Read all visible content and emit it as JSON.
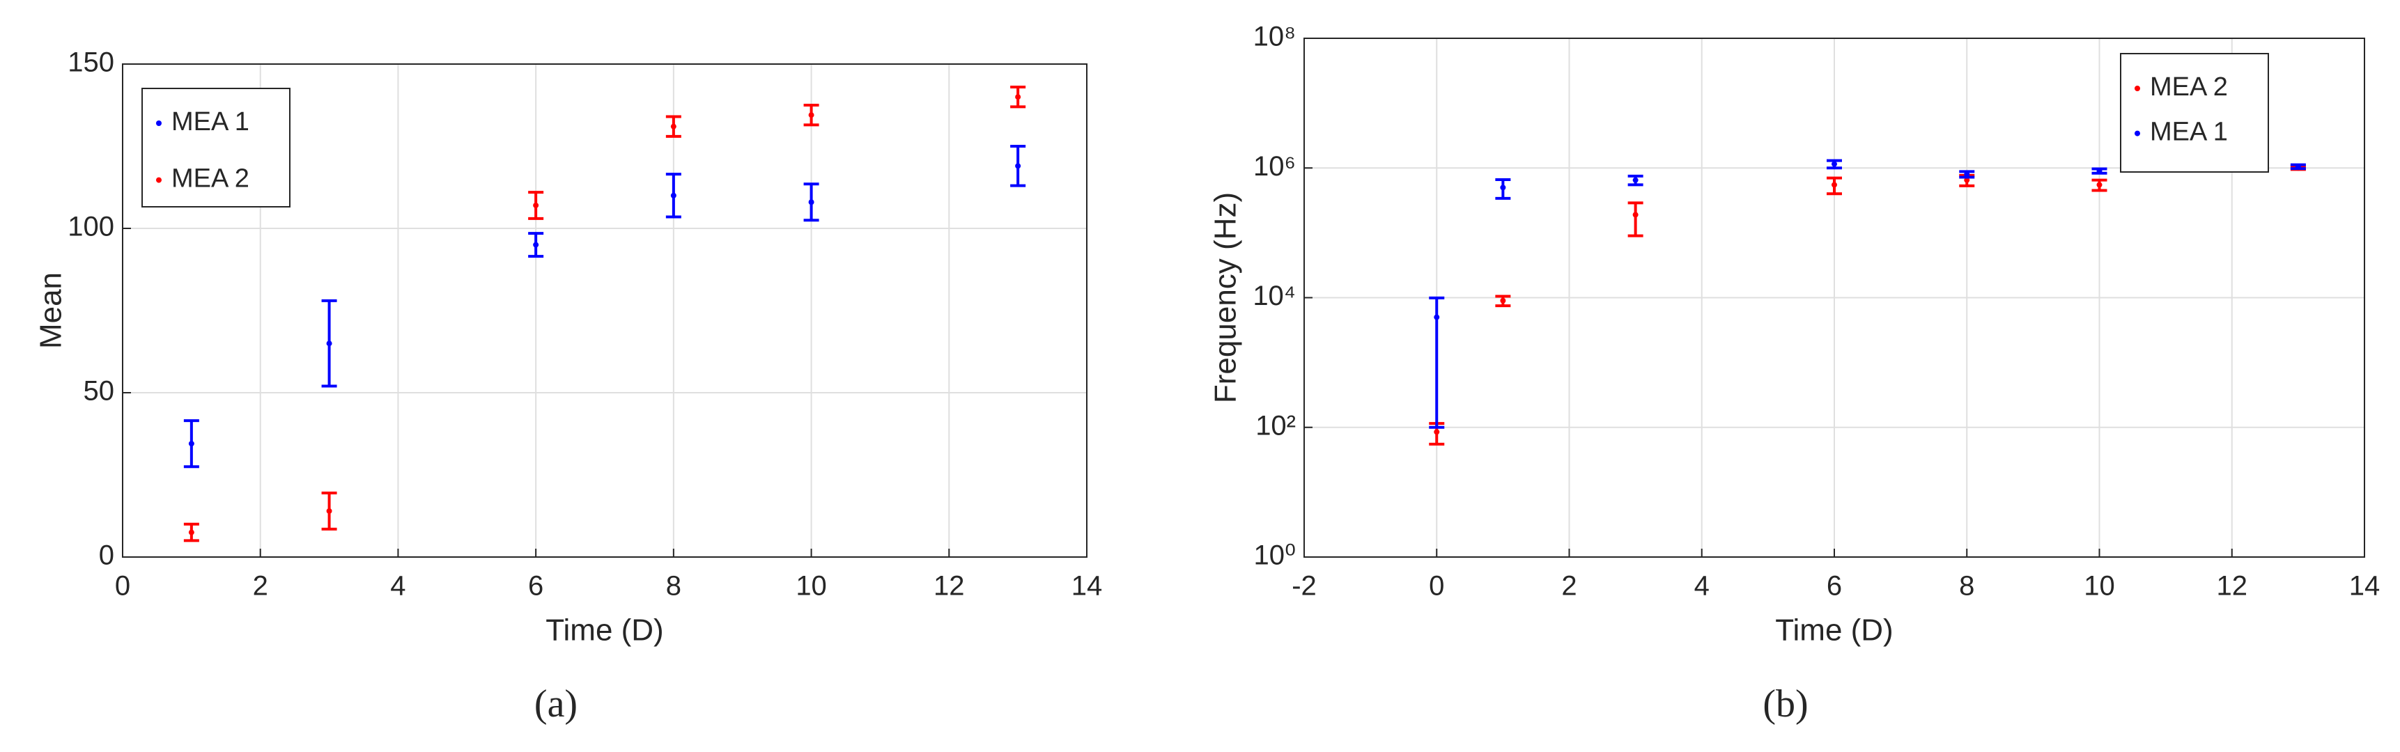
{
  "chart_data": [
    {
      "type": "errorbar",
      "caption": "(a)",
      "x_label": "Time (D)",
      "y_label": "Mean",
      "x": [
        1,
        3,
        6,
        8,
        10,
        13
      ],
      "series": [
        {
          "name": "MEA 1",
          "color": "#0000ff",
          "values": [
            34.5,
            65,
            95,
            110,
            108,
            119
          ],
          "errors": [
            7,
            13,
            3.5,
            6.5,
            5.5,
            6
          ]
        },
        {
          "name": "MEA 2",
          "color": "#ff0000",
          "values": [
            7.5,
            14,
            107,
            131,
            134.5,
            140
          ],
          "errors": [
            2.5,
            5.5,
            4,
            3,
            3,
            3
          ]
        }
      ],
      "xlim": [
        0,
        14
      ],
      "xticks": [
        0,
        2,
        4,
        6,
        8,
        10,
        12,
        14
      ],
      "ylim": [
        0,
        150
      ],
      "yticks": [
        0,
        50,
        100,
        150
      ],
      "grid": true,
      "legend": "upper left"
    },
    {
      "type": "errorbar",
      "caption": "(b)",
      "x_label": "Time (D)",
      "y_label": "Frequency (Hz)",
      "x": [
        0,
        1,
        3,
        6,
        8,
        10,
        13
      ],
      "series": [
        {
          "name": "MEA 2",
          "color": "#ff0000",
          "values": [
            85,
            9000,
            190000,
            550000,
            650000,
            550000,
            1000000
          ],
          "errors": [
            30,
            1500,
            100000,
            150000,
            120000,
            100000,
            50000
          ]
        },
        {
          "name": "MEA 1",
          "color": "#0000ff",
          "values": [
            5000,
            500000,
            650000,
            1150000,
            800000,
            900000,
            1050000
          ],
          "errors": [
            4900,
            160000,
            100000,
            150000,
            80000,
            70000,
            70000
          ]
        }
      ],
      "xlim": [
        -2,
        14
      ],
      "xticks": [
        -2,
        0,
        2,
        4,
        6,
        8,
        10,
        12,
        14
      ],
      "ylim": [
        1,
        100000000
      ],
      "yscale": "log",
      "yticks": [
        {
          "value": 1,
          "label": "10⁰"
        },
        {
          "value": 100,
          "label": "10²"
        },
        {
          "value": 10000,
          "label": "10⁴"
        },
        {
          "value": 1000000,
          "label": "10⁶"
        },
        {
          "value": 100000000,
          "label": "10⁸"
        }
      ],
      "grid": true,
      "legend": "upper right"
    }
  ]
}
